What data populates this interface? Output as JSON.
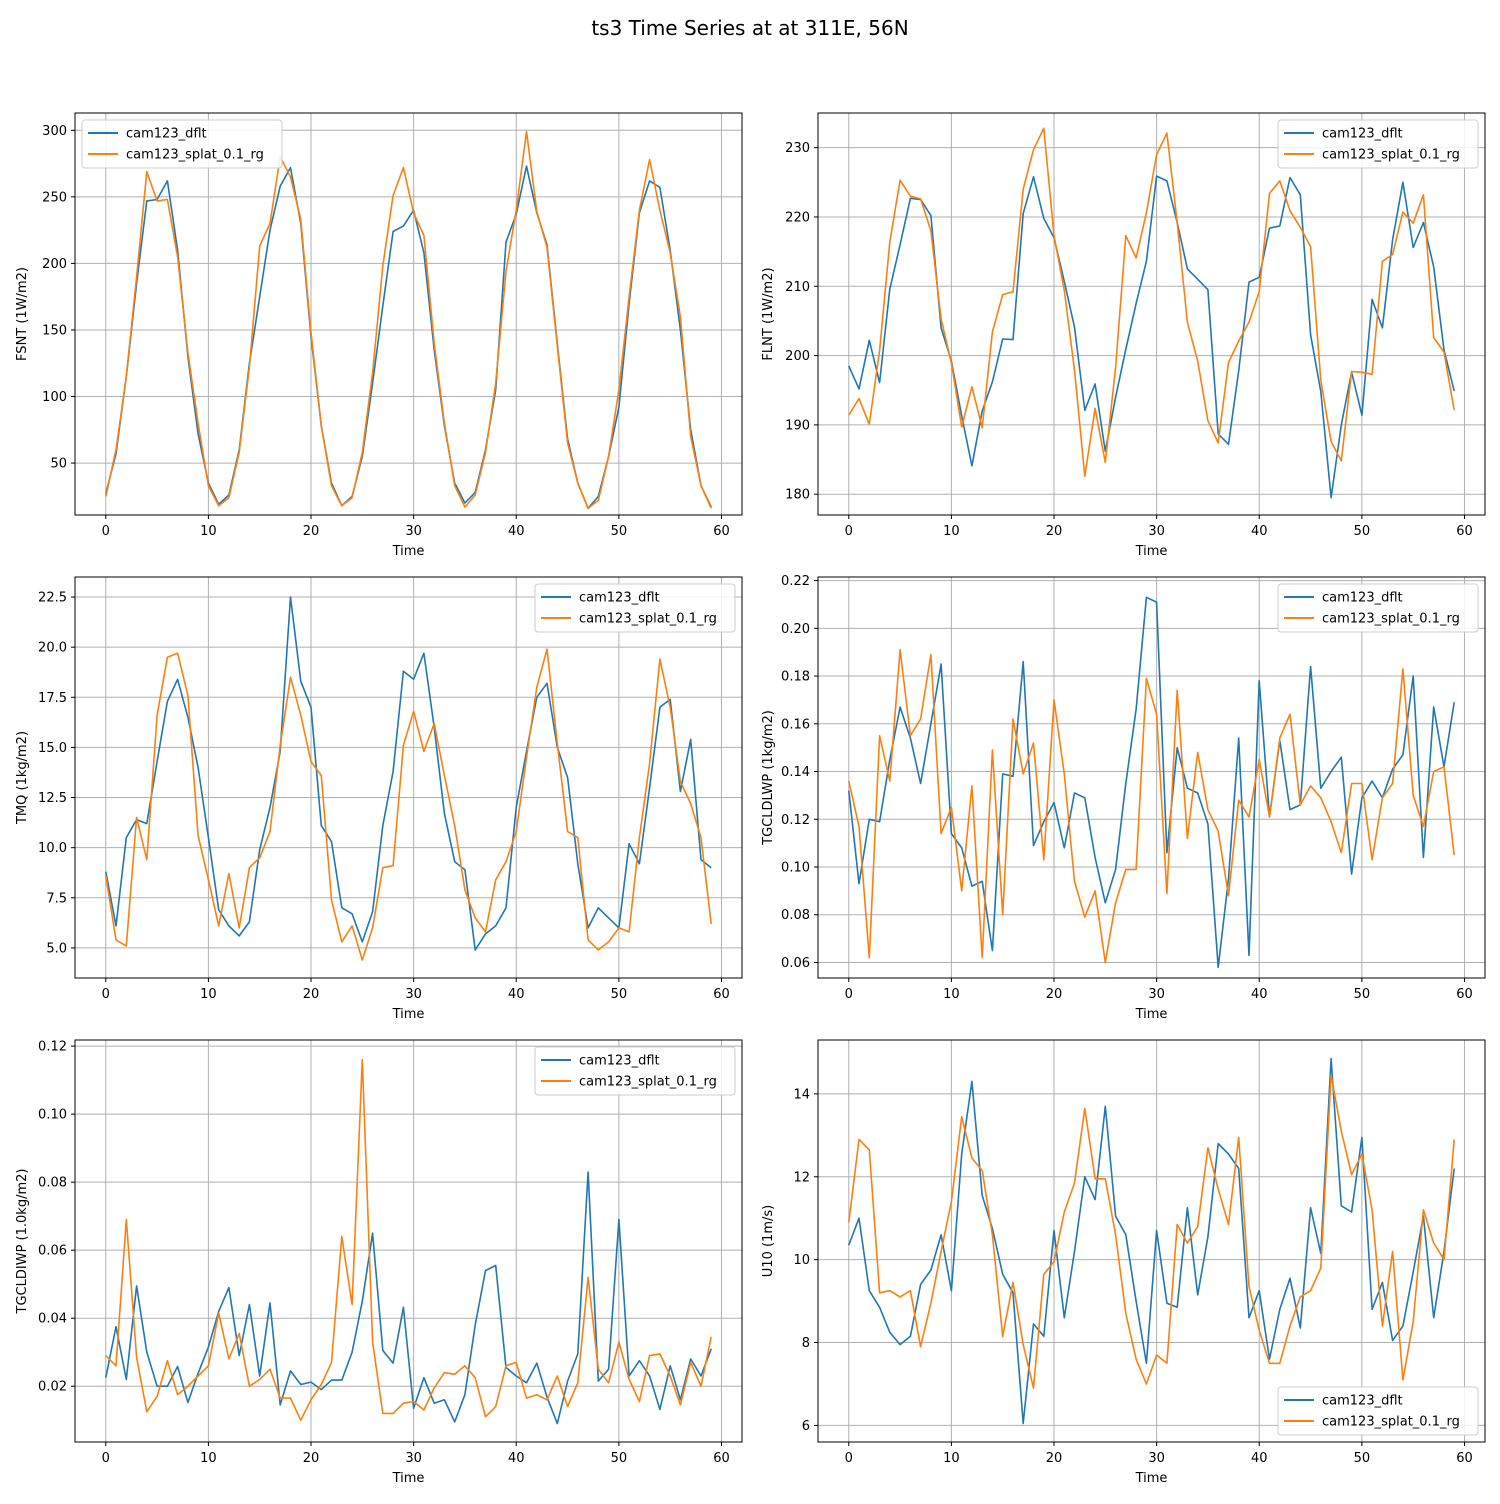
{
  "figure": {
    "title": "ts3 Time Series at at 311E, 56N"
  },
  "colors": {
    "series_1": "#1f77b4",
    "series_2": "#ff7f0e",
    "grid": "#b0b0b0",
    "axis": "#000000"
  },
  "chart_data": [
    {
      "type": "line",
      "xlabel": "Time",
      "ylabel": "FSNT (1W/m2)",
      "xlim": [
        -3,
        62
      ],
      "ylim": [
        11,
        313
      ],
      "xticks": [
        0,
        10,
        20,
        30,
        40,
        50,
        60
      ],
      "yticks": [
        50,
        100,
        150,
        200,
        250,
        300
      ],
      "ytick_labels": [
        "50",
        "100",
        "150",
        "200",
        "250",
        "300"
      ],
      "grid": true,
      "legend": "upper left",
      "series": [
        {
          "name": "cam123_dflt",
          "values": [
            27,
            57,
            115,
            185,
            247,
            248,
            262,
            210,
            130,
            72,
            35,
            19,
            26,
            60,
            125,
            175,
            225,
            258,
            272,
            230,
            145,
            78,
            35,
            18,
            25,
            55,
            110,
            168,
            224,
            228,
            240,
            208,
            135,
            78,
            35,
            20,
            28,
            60,
            105,
            216,
            237,
            273,
            238,
            214,
            140,
            68,
            35,
            16,
            25,
            55,
            92,
            170,
            238,
            262,
            257,
            210,
            150,
            75,
            33,
            17
          ]
        },
        {
          "name": "cam123_splat_0.1_rg",
          "values": [
            25,
            60,
            115,
            190,
            269,
            247,
            248,
            205,
            133,
            80,
            33,
            18,
            24,
            58,
            122,
            213,
            230,
            280,
            265,
            233,
            148,
            78,
            33,
            18,
            24,
            58,
            118,
            198,
            251,
            272,
            238,
            221,
            140,
            80,
            33,
            17,
            26,
            58,
            110,
            194,
            240,
            299,
            239,
            212,
            138,
            65,
            35,
            16,
            22,
            55,
            105,
            175,
            240,
            278,
            240,
            208,
            160,
            70,
            33,
            16
          ]
        }
      ]
    },
    {
      "type": "line",
      "xlabel": "Time",
      "ylabel": "FLNT (1W/m2)",
      "xlim": [
        -3,
        62
      ],
      "ylim": [
        177,
        235
      ],
      "xticks": [
        0,
        10,
        20,
        30,
        40,
        50,
        60
      ],
      "yticks": [
        180,
        190,
        200,
        210,
        220,
        230
      ],
      "ytick_labels": [
        "180",
        "190",
        "200",
        "210",
        "220",
        "230"
      ],
      "grid": true,
      "legend": "upper right",
      "series": [
        {
          "name": "cam123_dflt",
          "values": [
            198.5,
            195.2,
            202.2,
            196.1,
            209.6,
            216.0,
            222.7,
            222.5,
            220.2,
            204.0,
            199.2,
            191.3,
            184.1,
            192.0,
            196.2,
            202.4,
            202.3,
            220.5,
            225.8,
            219.8,
            217.0,
            210.7,
            204.1,
            192.1,
            195.9,
            186.2,
            194.0,
            200.9,
            207.5,
            213.6,
            225.9,
            225.2,
            219.2,
            212.5,
            211.0,
            209.5,
            188.7,
            187.2,
            197.8,
            210.6,
            211.3,
            218.4,
            218.7,
            225.7,
            223.2,
            203.0,
            194.8,
            179.5,
            190.0,
            197.6,
            191.4,
            208.1,
            204.0,
            216.7,
            225.0,
            215.6,
            219.2,
            212.8,
            200.8,
            194.9
          ]
        },
        {
          "name": "cam123_splat_0.1_rg",
          "values": [
            191.4,
            193.8,
            190.1,
            200.7,
            216.4,
            225.3,
            223.0,
            222.6,
            218.0,
            205.3,
            198.9,
            189.7,
            195.5,
            189.6,
            203.4,
            208.8,
            209.2,
            224.0,
            229.7,
            232.8,
            217.3,
            209.4,
            197.9,
            182.6,
            192.4,
            184.6,
            198.3,
            217.3,
            214.1,
            220.6,
            229.0,
            232.1,
            219.2,
            204.8,
            199.2,
            190.6,
            187.4,
            199.0,
            202.1,
            204.8,
            209.2,
            223.4,
            225.2,
            220.9,
            218.5,
            215.7,
            196.4,
            187.6,
            184.8,
            197.7,
            197.6,
            197.3,
            213.6,
            214.6,
            220.7,
            219.1,
            223.2,
            202.6,
            200.5,
            192.1
          ]
        }
      ]
    },
    {
      "type": "line",
      "xlabel": "Time",
      "ylabel": "TMQ (1kg/m2)",
      "xlim": [
        -3,
        62
      ],
      "ylim": [
        3.5,
        23.5
      ],
      "xticks": [
        0,
        10,
        20,
        30,
        40,
        50,
        60
      ],
      "yticks": [
        5.0,
        7.5,
        10.0,
        12.5,
        15.0,
        17.5,
        20.0,
        22.5
      ],
      "ytick_labels": [
        "5.0",
        "7.5",
        "10.0",
        "12.5",
        "15.0",
        "17.5",
        "20.0",
        "22.5"
      ],
      "grid": true,
      "legend": "upper right",
      "series": [
        {
          "name": "cam123_dflt",
          "values": [
            8.8,
            6.1,
            10.5,
            11.4,
            11.2,
            14.3,
            17.3,
            18.4,
            16.5,
            14.0,
            10.5,
            6.9,
            6.1,
            5.6,
            6.3,
            9.9,
            12.0,
            14.8,
            22.5,
            18.3,
            17.0,
            11.1,
            10.3,
            7.0,
            6.7,
            5.3,
            6.8,
            11.1,
            13.8,
            18.8,
            18.4,
            19.7,
            16.0,
            11.7,
            9.3,
            8.9,
            4.9,
            5.7,
            6.1,
            7.0,
            12.0,
            14.8,
            17.5,
            18.2,
            15.0,
            13.5,
            9.2,
            6.0,
            7.0,
            6.5,
            6.0,
            10.2,
            9.2,
            13.0,
            17.0,
            17.4,
            12.8,
            15.4,
            9.4,
            9.0
          ]
        },
        {
          "name": "cam123_splat_0.1_rg",
          "values": [
            8.6,
            5.4,
            5.1,
            11.5,
            9.4,
            16.6,
            19.5,
            19.7,
            17.6,
            10.6,
            8.4,
            6.1,
            8.7,
            6.0,
            9.0,
            9.5,
            10.8,
            15.1,
            18.5,
            16.6,
            14.3,
            13.6,
            7.4,
            5.3,
            6.1,
            4.4,
            6.0,
            9.0,
            9.1,
            15.1,
            16.8,
            14.8,
            16.2,
            13.6,
            11.1,
            7.9,
            6.5,
            5.8,
            8.4,
            9.3,
            10.8,
            14.5,
            18.0,
            19.9,
            15.2,
            10.8,
            10.5,
            5.4,
            4.9,
            5.3,
            6.0,
            5.8,
            10.5,
            14.2,
            19.4,
            17.0,
            13.3,
            12.2,
            10.5,
            6.2
          ]
        }
      ]
    },
    {
      "type": "line",
      "xlabel": "Time",
      "ylabel": "TGCLDLWP (1kg/m2)",
      "xlim": [
        -3,
        62
      ],
      "ylim": [
        0.0535,
        0.2215
      ],
      "xticks": [
        0,
        10,
        20,
        30,
        40,
        50,
        60
      ],
      "yticks": [
        0.06,
        0.08,
        0.1,
        0.12,
        0.14,
        0.16,
        0.18,
        0.2,
        0.22
      ],
      "ytick_labels": [
        "0.06",
        "0.08",
        "0.10",
        "0.12",
        "0.14",
        "0.16",
        "0.18",
        "0.20",
        "0.22"
      ],
      "grid": true,
      "legend": "upper right",
      "series": [
        {
          "name": "cam123_dflt",
          "values": [
            0.132,
            0.093,
            0.12,
            0.119,
            0.145,
            0.167,
            0.154,
            0.135,
            0.16,
            0.185,
            0.114,
            0.108,
            0.092,
            0.094,
            0.065,
            0.139,
            0.138,
            0.186,
            0.109,
            0.119,
            0.127,
            0.108,
            0.131,
            0.129,
            0.104,
            0.085,
            0.099,
            0.135,
            0.166,
            0.213,
            0.211,
            0.106,
            0.15,
            0.133,
            0.131,
            0.118,
            0.058,
            0.095,
            0.154,
            0.063,
            0.178,
            0.121,
            0.153,
            0.124,
            0.126,
            0.184,
            0.133,
            0.14,
            0.146,
            0.097,
            0.129,
            0.136,
            0.129,
            0.141,
            0.147,
            0.18,
            0.104,
            0.167,
            0.142,
            0.169
          ]
        },
        {
          "name": "cam123_splat_0.1_rg",
          "values": [
            0.136,
            0.117,
            0.062,
            0.155,
            0.136,
            0.191,
            0.155,
            0.162,
            0.189,
            0.114,
            0.125,
            0.09,
            0.134,
            0.062,
            0.149,
            0.08,
            0.162,
            0.139,
            0.152,
            0.103,
            0.17,
            0.139,
            0.094,
            0.079,
            0.09,
            0.06,
            0.085,
            0.099,
            0.099,
            0.179,
            0.164,
            0.089,
            0.174,
            0.112,
            0.148,
            0.124,
            0.115,
            0.088,
            0.128,
            0.121,
            0.145,
            0.121,
            0.154,
            0.164,
            0.126,
            0.134,
            0.129,
            0.119,
            0.106,
            0.135,
            0.135,
            0.103,
            0.129,
            0.135,
            0.183,
            0.13,
            0.117,
            0.14,
            0.142,
            0.105
          ]
        }
      ]
    },
    {
      "type": "line",
      "xlabel": "Time",
      "ylabel": "TGCLDIWP (1.0kg/m2)",
      "xlim": [
        -3,
        62
      ],
      "ylim": [
        0.0036,
        0.1218
      ],
      "xticks": [
        0,
        10,
        20,
        30,
        40,
        50,
        60
      ],
      "yticks": [
        0.02,
        0.04,
        0.06,
        0.08,
        0.1,
        0.12
      ],
      "ytick_labels": [
        "0.02",
        "0.04",
        "0.06",
        "0.08",
        "0.10",
        "0.12"
      ],
      "grid": true,
      "legend": "upper right",
      "series": [
        {
          "name": "cam123_dflt",
          "values": [
            0.0225,
            0.0375,
            0.022,
            0.0495,
            0.03,
            0.02,
            0.02,
            0.0258,
            0.0152,
            0.0238,
            0.0315,
            0.042,
            0.049,
            0.029,
            0.044,
            0.023,
            0.0445,
            0.0145,
            0.0245,
            0.0205,
            0.0212,
            0.019,
            0.0218,
            0.0218,
            0.03,
            0.045,
            0.065,
            0.0305,
            0.0268,
            0.0432,
            0.0135,
            0.0225,
            0.015,
            0.016,
            0.0095,
            0.0175,
            0.038,
            0.054,
            0.0555,
            0.0255,
            0.023,
            0.021,
            0.0268,
            0.0168,
            0.009,
            0.0215,
            0.0295,
            0.083,
            0.0215,
            0.025,
            0.069,
            0.023,
            0.0275,
            0.023,
            0.0132,
            0.026,
            0.016,
            0.028,
            0.023,
            0.031
          ]
        },
        {
          "name": "cam123_splat_0.1_rg",
          "values": [
            0.029,
            0.026,
            0.069,
            0.0285,
            0.0125,
            0.017,
            0.0275,
            0.0175,
            0.02,
            0.023,
            0.026,
            0.0415,
            0.028,
            0.0355,
            0.02,
            0.022,
            0.025,
            0.0165,
            0.0165,
            0.01,
            0.016,
            0.0205,
            0.027,
            0.064,
            0.044,
            0.116,
            0.033,
            0.012,
            0.012,
            0.015,
            0.0155,
            0.013,
            0.0195,
            0.024,
            0.0235,
            0.026,
            0.0225,
            0.011,
            0.014,
            0.026,
            0.027,
            0.0165,
            0.0175,
            0.016,
            0.023,
            0.014,
            0.021,
            0.052,
            0.025,
            0.021,
            0.033,
            0.022,
            0.0155,
            0.029,
            0.0295,
            0.023,
            0.0145,
            0.027,
            0.02,
            0.0345
          ]
        }
      ]
    },
    {
      "type": "line",
      "xlabel": "Time",
      "ylabel": "U10 (1m/s)",
      "xlim": [
        -3,
        62
      ],
      "ylim": [
        5.6,
        15.3
      ],
      "xticks": [
        0,
        10,
        20,
        30,
        40,
        50,
        60
      ],
      "yticks": [
        6,
        8,
        10,
        12,
        14
      ],
      "ytick_labels": [
        "6",
        "8",
        "10",
        "12",
        "14"
      ],
      "grid": true,
      "legend": "lower right",
      "series": [
        {
          "name": "cam123_dflt",
          "values": [
            10.35,
            11.0,
            9.25,
            8.85,
            8.25,
            7.95,
            8.15,
            9.4,
            9.75,
            10.6,
            9.25,
            12.55,
            14.3,
            11.55,
            10.75,
            9.65,
            9.2,
            6.05,
            8.45,
            8.15,
            10.7,
            8.6,
            10.2,
            12.0,
            11.45,
            13.7,
            11.05,
            10.6,
            9.0,
            7.5,
            10.7,
            8.95,
            8.85,
            11.25,
            9.15,
            10.55,
            12.8,
            12.55,
            12.2,
            8.6,
            9.25,
            7.6,
            8.8,
            9.55,
            8.35,
            11.25,
            10.15,
            14.85,
            11.3,
            11.15,
            12.95,
            8.8,
            9.45,
            8.05,
            8.4,
            9.7,
            11.05,
            8.6,
            10.2,
            12.2
          ]
        },
        {
          "name": "cam123_splat_0.1_rg",
          "values": [
            10.9,
            12.9,
            12.65,
            9.2,
            9.25,
            9.1,
            9.25,
            7.9,
            8.95,
            10.2,
            11.4,
            13.45,
            12.45,
            12.15,
            10.6,
            8.15,
            9.45,
            7.95,
            6.9,
            9.65,
            9.95,
            11.15,
            11.85,
            13.65,
            11.95,
            11.95,
            10.6,
            8.7,
            7.6,
            7.0,
            7.7,
            7.5,
            10.85,
            10.4,
            10.8,
            12.7,
            11.7,
            10.85,
            12.95,
            9.35,
            8.3,
            7.5,
            7.5,
            8.4,
            9.1,
            9.25,
            9.8,
            14.45,
            13.1,
            12.05,
            12.55,
            11.2,
            8.4,
            10.2,
            7.1,
            8.5,
            11.2,
            10.4,
            10.0,
            12.9
          ]
        }
      ]
    }
  ]
}
